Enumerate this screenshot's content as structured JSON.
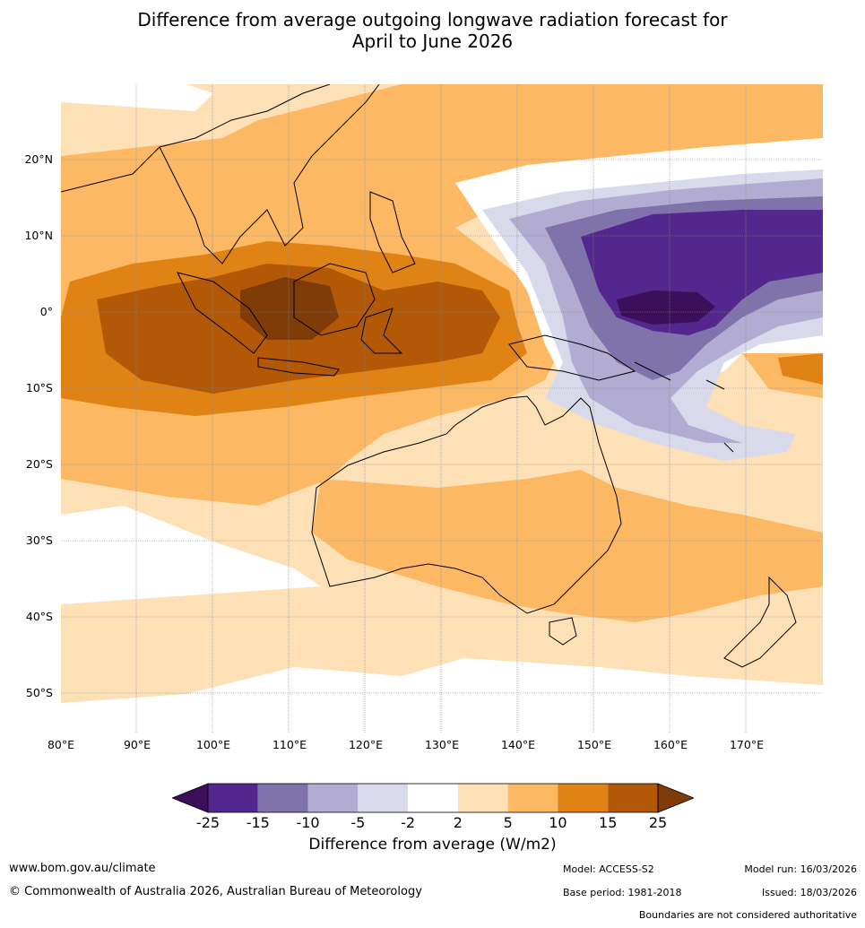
{
  "title_line1": "Difference from average outgoing longwave radiation forecast for",
  "title_line2": "April to June 2026",
  "lat_labels": [
    "20°N",
    "10°N",
    "0°",
    "10°S",
    "20°S",
    "30°S",
    "40°S",
    "50°S"
  ],
  "lon_labels": [
    "80°E",
    "90°E",
    "100°E",
    "110°E",
    "120°E",
    "130°E",
    "140°E",
    "150°E",
    "160°E",
    "170°E"
  ],
  "legend": {
    "ticks": [
      "-25",
      "-15",
      "-10",
      "-5",
      "-2",
      "2",
      "5",
      "10",
      "15",
      "25"
    ],
    "colors": [
      "#3b0f5a",
      "#54278f",
      "#8073ac",
      "#b2abd2",
      "#d8daeb",
      "#ffffff",
      "#fee0b6",
      "#fdb863",
      "#e08214",
      "#b35806",
      "#7f3b08"
    ],
    "title": "Difference from average (W/m2)"
  },
  "footer": {
    "website": "www.bom.gov.au/climate",
    "copyright": "© Commonwealth of Australia 2026, Australian Bureau of Meteorology",
    "model": "Model: ACCESS-S2",
    "base_period": "Base period: 1981-2018",
    "model_run": "Model run: 16/03/2026",
    "issued": "Issued: 18/03/2026",
    "disclaimer": "Boundaries are not considered authoritative"
  }
}
